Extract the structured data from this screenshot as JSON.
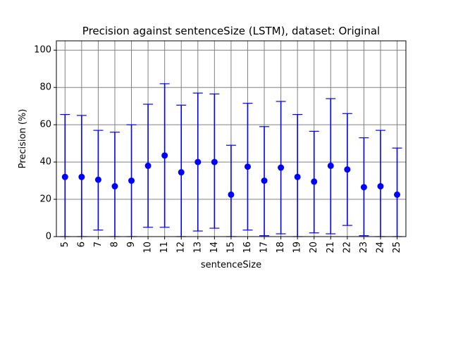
{
  "chart_data": {
    "type": "scatter",
    "title": "Precision against sentenceSize (LSTM), dataset: Original",
    "xlabel": "sentenceSize",
    "ylabel": "Precision (%)",
    "ylim": [
      0,
      105
    ],
    "y_ticks": [
      0,
      20,
      40,
      60,
      80,
      100
    ],
    "grid": true,
    "categories": [
      "5",
      "6",
      "7",
      "8",
      "9",
      "10",
      "11",
      "12",
      "13",
      "14",
      "15",
      "16",
      "17",
      "18",
      "19",
      "20",
      "21",
      "22",
      "23",
      "24",
      "25"
    ],
    "series": [
      {
        "values": [
          32.0,
          32.0,
          30.5,
          27.0,
          30.0,
          38.0,
          43.5,
          34.5,
          40.0,
          40.0,
          22.5,
          37.5,
          30.0,
          37.0,
          32.0,
          29.5,
          38.0,
          36.0,
          26.5,
          27.0,
          22.5
        ],
        "err_low": [
          0.0,
          0.0,
          3.5,
          0.0,
          0.0,
          5.0,
          5.0,
          0.0,
          3.0,
          4.5,
          0.0,
          3.5,
          0.5,
          1.5,
          0.0,
          2.0,
          1.5,
          6.0,
          0.5,
          0.0,
          0.0
        ],
        "err_high": [
          65.5,
          65.0,
          57.0,
          56.0,
          60.0,
          71.0,
          82.0,
          70.5,
          77.0,
          76.5,
          49.0,
          71.5,
          59.0,
          72.5,
          65.5,
          56.5,
          74.0,
          66.0,
          53.0,
          57.0,
          47.5
        ]
      }
    ],
    "colors": {
      "series": "#0000ff",
      "grid": "#808080",
      "axes": "#000000"
    }
  }
}
